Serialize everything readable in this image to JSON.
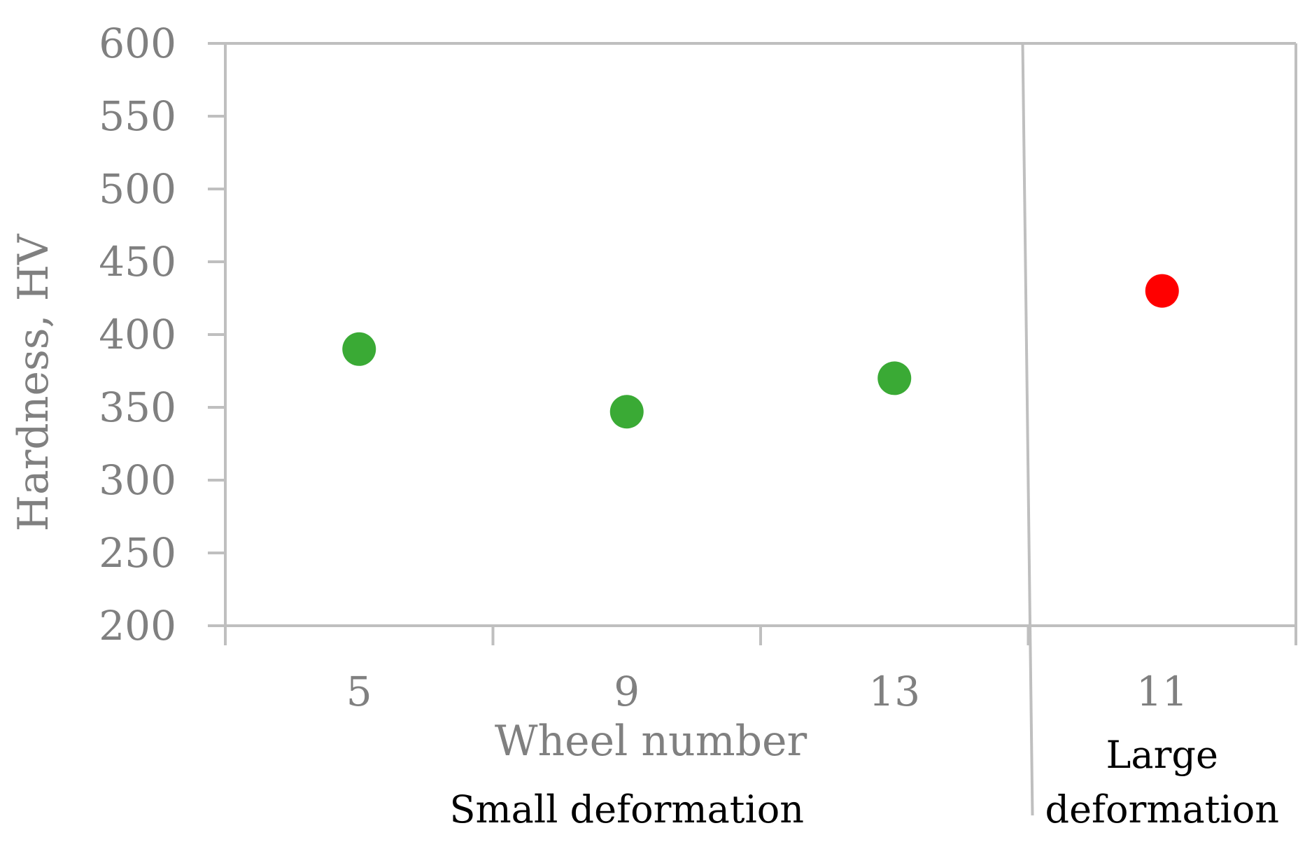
{
  "chart_data": {
    "type": "scatter",
    "ylabel": "Hardness, HV",
    "xlabel": "Wheel number",
    "ylim": [
      200,
      600
    ],
    "y_ticks": [
      200,
      250,
      300,
      350,
      400,
      450,
      500,
      550,
      600
    ],
    "grid": false,
    "legend": "none",
    "categories": [
      "5",
      "9",
      "13",
      "11"
    ],
    "points": [
      {
        "wheel": "5",
        "value": 390,
        "color": "#3aaa35"
      },
      {
        "wheel": "9",
        "value": 347,
        "color": "#3aaa35"
      },
      {
        "wheel": "13",
        "value": 370,
        "color": "#3aaa35"
      },
      {
        "wheel": "11",
        "value": 430,
        "color": "#ff0000"
      }
    ],
    "groups": [
      {
        "label_lines": [
          "Small deformation"
        ],
        "categories": [
          "5",
          "9",
          "13"
        ]
      },
      {
        "label_lines": [
          "Large",
          "deformation"
        ],
        "categories": [
          "11"
        ]
      }
    ],
    "axis_color": "#bfbfbf"
  }
}
